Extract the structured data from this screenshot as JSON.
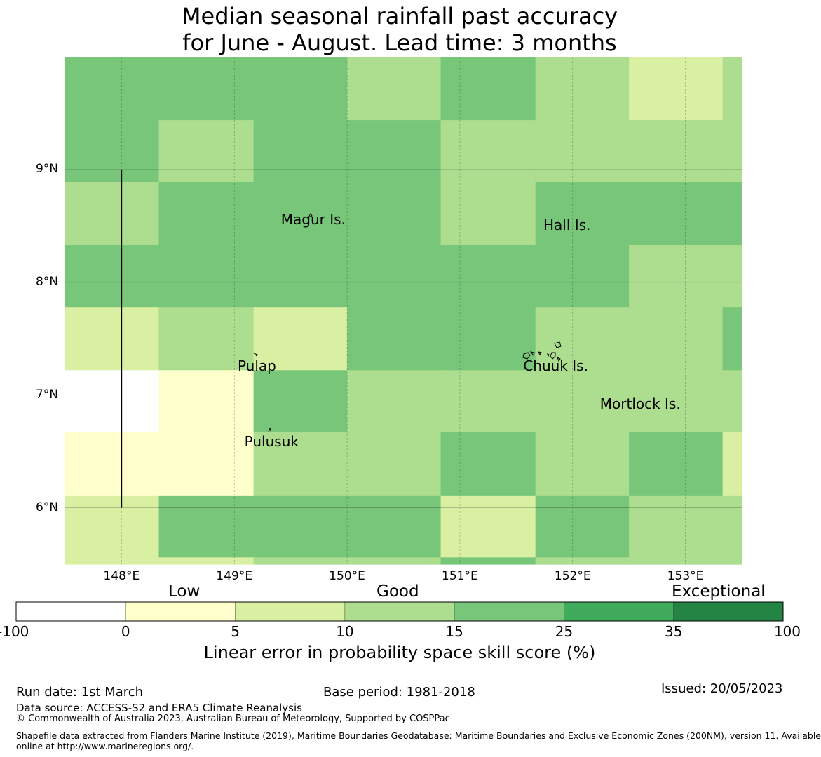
{
  "title": {
    "line1": "Median seasonal rainfall past accuracy",
    "line2": "for June - August. Lead time: 3 months"
  },
  "map": {
    "lon_range": [
      147.5,
      153.5
    ],
    "lat_range": [
      5.5,
      10.0
    ],
    "lat_labels": [
      "9°N",
      "8°N",
      "7°N",
      "6°N"
    ],
    "lat_values": [
      9,
      8,
      7,
      6
    ],
    "lon_labels": [
      "148°E",
      "149°E",
      "150°E",
      "151°E",
      "152°E",
      "153°E"
    ],
    "lon_values": [
      148,
      149,
      150,
      151,
      152,
      153
    ],
    "grid_lon_edges": [
      147.5,
      148.33,
      149.17,
      150.0,
      150.83,
      151.67,
      152.5,
      153.33,
      153.5
    ],
    "grid_lat_edges": [
      10.0,
      9.44,
      8.89,
      8.33,
      7.78,
      7.22,
      6.67,
      6.11,
      5.56,
      5.5
    ],
    "grid_categories": [
      [
        4,
        4,
        4,
        3,
        4,
        3,
        2,
        3
      ],
      [
        4,
        3,
        4,
        4,
        3,
        3,
        3,
        3
      ],
      [
        3,
        4,
        4,
        4,
        3,
        4,
        4,
        4
      ],
      [
        4,
        4,
        4,
        4,
        4,
        4,
        3,
        3
      ],
      [
        2,
        3,
        2,
        4,
        4,
        3,
        3,
        4
      ],
      [
        0,
        1,
        4,
        3,
        3,
        3,
        3,
        3
      ],
      [
        1,
        1,
        3,
        3,
        4,
        3,
        4,
        2
      ],
      [
        2,
        4,
        4,
        4,
        2,
        4,
        3,
        3
      ],
      [
        2,
        2,
        3,
        3,
        4,
        3,
        3,
        3
      ]
    ],
    "places": [
      {
        "name": "Magur Is.",
        "lon": 149.7,
        "lat": 8.55
      },
      {
        "name": "Hall Is.",
        "lon": 151.95,
        "lat": 8.5
      },
      {
        "name": "Pulap",
        "lon": 149.2,
        "lat": 7.25
      },
      {
        "name": "Chuuk Is.",
        "lon": 151.85,
        "lat": 7.25
      },
      {
        "name": "Mortlock Is.",
        "lon": 152.6,
        "lat": 6.92
      },
      {
        "name": "Pulusuk",
        "lon": 149.33,
        "lat": 6.58
      }
    ],
    "boundary_line": {
      "lon": 148.0,
      "lat_from": 9.0,
      "lat_to": 6.0
    }
  },
  "colorbar": {
    "title": "Linear error in probability space skill score (%)",
    "category_labels": [
      "Low",
      "Good",
      "Exceptional"
    ],
    "ticks": [
      "-100",
      "0",
      "5",
      "10",
      "15",
      "25",
      "35",
      "100"
    ],
    "colors": [
      "#ffffff",
      "#ffffcc",
      "#d9f0a3",
      "#addd8e",
      "#78c679",
      "#41ab5d",
      "#238443"
    ]
  },
  "footer": {
    "run_date": "Run date: 1st March",
    "base_period": "Base period: 1981-2018",
    "issued": "Issued: 20/05/2023",
    "data_source": "Data source: ACCESS-S2 and ERA5 Climate Reanalysis",
    "copyright": "© Commonwealth of Australia 2023, Australian Bureau of Meteorology, Supported by COSPPac",
    "shapefile_line1": "Shapefile data extracted from Flanders Marine Institute (2019), Maritime Boundaries Geodatabase: Maritime Boundaries and Exclusive Economic Zones (200NM), version 11. Available",
    "shapefile_line2": "online at http://www.marineregions.org/."
  }
}
